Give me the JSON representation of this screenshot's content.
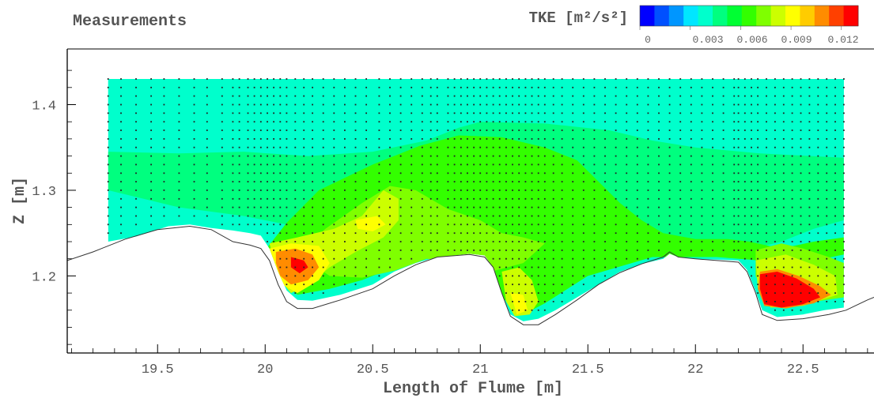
{
  "chart_data": {
    "type": "heatmap",
    "title": "Measurements",
    "legend": {
      "title": "TKE [m²/s²]",
      "tick_labels": [
        "0",
        "0.003",
        "0.006",
        "0.009",
        "0.012"
      ],
      "ticks": [
        0,
        0.003,
        0.006,
        0.009,
        0.012
      ],
      "range": [
        0,
        0.013
      ],
      "colors": [
        "#0000ff",
        "#0050ff",
        "#0096ff",
        "#00e6ff",
        "#00ffcc",
        "#00ff7f",
        "#00ff33",
        "#33ff00",
        "#7fff00",
        "#ccff00",
        "#ffff00",
        "#ffcc00",
        "#ff8c00",
        "#ff4000",
        "#ff0000"
      ]
    },
    "xlabel": "Length of Flume [m]",
    "ylabel": "Z [m]",
    "x_ticks": [
      "19.5",
      "20",
      "20.5",
      "21",
      "21.5",
      "22",
      "22.5"
    ],
    "y_ticks": [
      "1.2",
      "1.3",
      "1.4"
    ],
    "xlim": [
      19.08,
      22.83
    ],
    "ylim": [
      1.11,
      1.465
    ],
    "bed_profile": [
      [
        19.08,
        1.218
      ],
      [
        19.2,
        1.228
      ],
      [
        19.35,
        1.243
      ],
      [
        19.5,
        1.254
      ],
      [
        19.65,
        1.258
      ],
      [
        19.75,
        1.254
      ],
      [
        19.85,
        1.24
      ],
      [
        19.93,
        1.236
      ],
      [
        19.98,
        1.232
      ],
      [
        20.02,
        1.218
      ],
      [
        20.06,
        1.19
      ],
      [
        20.1,
        1.17
      ],
      [
        20.15,
        1.162
      ],
      [
        20.22,
        1.162
      ],
      [
        20.35,
        1.172
      ],
      [
        20.5,
        1.185
      ],
      [
        20.6,
        1.2
      ],
      [
        20.7,
        1.213
      ],
      [
        20.8,
        1.222
      ],
      [
        20.95,
        1.225
      ],
      [
        21.02,
        1.222
      ],
      [
        21.06,
        1.21
      ],
      [
        21.1,
        1.18
      ],
      [
        21.14,
        1.153
      ],
      [
        21.2,
        1.143
      ],
      [
        21.27,
        1.143
      ],
      [
        21.35,
        1.155
      ],
      [
        21.45,
        1.172
      ],
      [
        21.55,
        1.19
      ],
      [
        21.65,
        1.204
      ],
      [
        21.75,
        1.214
      ],
      [
        21.85,
        1.222
      ],
      [
        21.88,
        1.228
      ],
      [
        21.92,
        1.222
      ],
      [
        22.0,
        1.22
      ],
      [
        22.1,
        1.218
      ],
      [
        22.2,
        1.216
      ],
      [
        22.24,
        1.205
      ],
      [
        22.28,
        1.18
      ],
      [
        22.31,
        1.155
      ],
      [
        22.38,
        1.148
      ],
      [
        22.5,
        1.15
      ],
      [
        22.62,
        1.155
      ],
      [
        22.7,
        1.16
      ],
      [
        22.8,
        1.172
      ],
      [
        22.83,
        1.175
      ]
    ],
    "data_bottom": [
      [
        19.27,
        1.24
      ],
      [
        19.4,
        1.246
      ],
      [
        19.55,
        1.258
      ],
      [
        19.65,
        1.26
      ],
      [
        19.75,
        1.256
      ],
      [
        19.85,
        1.253
      ],
      [
        19.93,
        1.25
      ],
      [
        19.98,
        1.247
      ],
      [
        20.02,
        1.232
      ],
      [
        20.06,
        1.205
      ],
      [
        20.1,
        1.183
      ],
      [
        20.15,
        1.172
      ],
      [
        20.22,
        1.171
      ],
      [
        20.35,
        1.178
      ],
      [
        20.5,
        1.19
      ],
      [
        20.6,
        1.205
      ],
      [
        20.7,
        1.215
      ],
      [
        20.8,
        1.222
      ],
      [
        20.95,
        1.226
      ],
      [
        21.02,
        1.224
      ],
      [
        21.06,
        1.21
      ],
      [
        21.1,
        1.18
      ],
      [
        21.14,
        1.155
      ],
      [
        21.2,
        1.147
      ],
      [
        21.27,
        1.15
      ],
      [
        21.35,
        1.16
      ],
      [
        21.45,
        1.175
      ],
      [
        21.55,
        1.19
      ],
      [
        21.65,
        1.205
      ],
      [
        21.75,
        1.214
      ],
      [
        21.85,
        1.22
      ],
      [
        21.88,
        1.226
      ],
      [
        21.92,
        1.222
      ],
      [
        22.0,
        1.22
      ],
      [
        22.1,
        1.219
      ],
      [
        22.2,
        1.218
      ],
      [
        22.24,
        1.207
      ],
      [
        22.28,
        1.182
      ],
      [
        22.31,
        1.16
      ],
      [
        22.38,
        1.152
      ],
      [
        22.5,
        1.155
      ],
      [
        22.6,
        1.16
      ],
      [
        22.69,
        1.163
      ]
    ],
    "data_top": 1.43,
    "data_x_range": [
      19.27,
      22.69
    ],
    "bands": [
      {
        "value": 0.0035,
        "polygon": [
          [
            19.27,
            1.43
          ],
          [
            22.69,
            1.43
          ],
          [
            22.69,
            1.395
          ],
          [
            22.3,
            1.392
          ],
          [
            21.9,
            1.39
          ],
          [
            21.5,
            1.39
          ],
          [
            21.0,
            1.385
          ],
          [
            20.8,
            1.375
          ],
          [
            20.5,
            1.378
          ],
          [
            20.2,
            1.385
          ],
          [
            19.9,
            1.388
          ],
          [
            19.6,
            1.39
          ],
          [
            19.27,
            1.392
          ]
        ]
      },
      {
        "value": 0.0048,
        "polygon": [
          [
            19.27,
            1.345
          ],
          [
            19.6,
            1.343
          ],
          [
            19.9,
            1.345
          ],
          [
            20.2,
            1.34
          ],
          [
            20.5,
            1.345
          ],
          [
            20.75,
            1.358
          ],
          [
            20.9,
            1.373
          ],
          [
            21.0,
            1.38
          ],
          [
            21.3,
            1.378
          ],
          [
            21.6,
            1.37
          ],
          [
            21.8,
            1.358
          ],
          [
            22.0,
            1.35
          ],
          [
            22.3,
            1.343
          ],
          [
            22.69,
            1.338
          ],
          [
            22.69,
            1.265
          ],
          [
            22.55,
            1.255
          ],
          [
            22.4,
            1.24
          ],
          [
            22.2,
            1.228
          ],
          [
            21.9,
            1.232
          ],
          [
            21.6,
            1.225
          ],
          [
            21.3,
            1.222
          ],
          [
            21.0,
            1.232
          ],
          [
            20.75,
            1.245
          ],
          [
            20.5,
            1.25
          ],
          [
            20.2,
            1.255
          ],
          [
            19.9,
            1.27
          ],
          [
            19.6,
            1.28
          ],
          [
            19.27,
            1.3
          ]
        ]
      },
      {
        "value": 0.0062,
        "polygon": [
          [
            20.25,
            1.3
          ],
          [
            20.5,
            1.33
          ],
          [
            20.72,
            1.352
          ],
          [
            20.9,
            1.364
          ],
          [
            21.1,
            1.362
          ],
          [
            21.3,
            1.35
          ],
          [
            21.45,
            1.335
          ],
          [
            21.55,
            1.31
          ],
          [
            21.65,
            1.285
          ],
          [
            21.75,
            1.265
          ],
          [
            21.85,
            1.25
          ],
          [
            22.0,
            1.243
          ],
          [
            22.15,
            1.243
          ],
          [
            22.25,
            1.24
          ],
          [
            22.4,
            1.232
          ],
          [
            22.55,
            1.24
          ],
          [
            22.69,
            1.245
          ],
          [
            22.69,
            1.225
          ],
          [
            22.5,
            1.215
          ],
          [
            22.3,
            1.218
          ],
          [
            22.1,
            1.222
          ],
          [
            21.8,
            1.222
          ],
          [
            21.5,
            1.2
          ],
          [
            21.3,
            1.168
          ],
          [
            21.2,
            1.155
          ],
          [
            21.1,
            1.175
          ],
          [
            21.0,
            1.215
          ],
          [
            20.8,
            1.225
          ],
          [
            20.6,
            1.21
          ],
          [
            20.45,
            1.195
          ],
          [
            20.3,
            1.185
          ],
          [
            20.15,
            1.178
          ],
          [
            20.05,
            1.2
          ],
          [
            20.0,
            1.23
          ],
          [
            20.1,
            1.262
          ]
        ]
      },
      {
        "value": 0.0074,
        "polygon": [
          [
            20.15,
            1.225
          ],
          [
            20.28,
            1.255
          ],
          [
            20.45,
            1.285
          ],
          [
            20.58,
            1.305
          ],
          [
            20.7,
            1.3
          ],
          [
            20.85,
            1.278
          ],
          [
            21.0,
            1.265
          ],
          [
            21.1,
            1.25
          ],
          [
            21.2,
            1.245
          ],
          [
            21.3,
            1.238
          ],
          [
            21.2,
            1.215
          ],
          [
            21.05,
            1.205
          ],
          [
            20.9,
            1.218
          ],
          [
            20.75,
            1.22
          ],
          [
            20.6,
            1.206
          ],
          [
            20.45,
            1.198
          ],
          [
            20.3,
            1.2
          ]
        ]
      },
      {
        "value": 0.0074,
        "polygon": [
          [
            22.28,
            1.23
          ],
          [
            22.4,
            1.238
          ],
          [
            22.5,
            1.232
          ],
          [
            22.62,
            1.222
          ],
          [
            22.69,
            1.215
          ],
          [
            22.69,
            1.175
          ],
          [
            22.5,
            1.168
          ],
          [
            22.35,
            1.17
          ],
          [
            22.28,
            1.2
          ]
        ]
      },
      {
        "value": 0.0083,
        "polygon": [
          [
            20.02,
            1.238
          ],
          [
            20.15,
            1.245
          ],
          [
            20.32,
            1.255
          ],
          [
            20.45,
            1.27
          ],
          [
            20.55,
            1.3
          ],
          [
            20.62,
            1.29
          ],
          [
            20.62,
            1.265
          ],
          [
            20.55,
            1.245
          ],
          [
            20.42,
            1.228
          ],
          [
            20.3,
            1.21
          ],
          [
            20.2,
            1.19
          ],
          [
            20.12,
            1.18
          ],
          [
            20.06,
            1.198
          ]
        ]
      },
      {
        "value": 0.0083,
        "polygon": [
          [
            21.1,
            1.205
          ],
          [
            21.18,
            1.21
          ],
          [
            21.24,
            1.195
          ],
          [
            21.27,
            1.17
          ],
          [
            21.23,
            1.155
          ],
          [
            21.16,
            1.153
          ],
          [
            21.12,
            1.17
          ]
        ]
      },
      {
        "value": 0.0083,
        "polygon": [
          [
            22.28,
            1.218
          ],
          [
            22.42,
            1.225
          ],
          [
            22.55,
            1.213
          ],
          [
            22.65,
            1.2
          ],
          [
            22.66,
            1.178
          ],
          [
            22.5,
            1.165
          ],
          [
            22.35,
            1.163
          ],
          [
            22.29,
            1.185
          ]
        ]
      },
      {
        "value": 0.0095,
        "polygon": [
          [
            20.02,
            1.232
          ],
          [
            20.12,
            1.238
          ],
          [
            20.25,
            1.235
          ],
          [
            20.3,
            1.215
          ],
          [
            20.25,
            1.195
          ],
          [
            20.15,
            1.18
          ],
          [
            20.08,
            1.19
          ],
          [
            20.04,
            1.21
          ]
        ]
      },
      {
        "value": 0.0095,
        "polygon": [
          [
            20.42,
            1.265
          ],
          [
            20.52,
            1.27
          ],
          [
            20.56,
            1.26
          ],
          [
            20.5,
            1.252
          ],
          [
            20.43,
            1.255
          ]
        ]
      },
      {
        "value": 0.0095,
        "polygon": [
          [
            21.14,
            1.18
          ],
          [
            21.2,
            1.178
          ],
          [
            21.22,
            1.16
          ],
          [
            21.17,
            1.155
          ]
        ]
      },
      {
        "value": 0.0112,
        "polygon": [
          [
            20.05,
            1.228
          ],
          [
            20.14,
            1.232
          ],
          [
            20.22,
            1.225
          ],
          [
            20.25,
            1.21
          ],
          [
            20.2,
            1.195
          ],
          [
            20.12,
            1.19
          ],
          [
            20.07,
            1.2
          ],
          [
            20.05,
            1.215
          ]
        ]
      },
      {
        "value": 0.0112,
        "polygon": [
          [
            22.3,
            1.205
          ],
          [
            22.38,
            1.208
          ],
          [
            22.48,
            1.2
          ],
          [
            22.58,
            1.188
          ],
          [
            22.63,
            1.178
          ],
          [
            22.55,
            1.168
          ],
          [
            22.42,
            1.162
          ],
          [
            22.32,
            1.165
          ],
          [
            22.29,
            1.185
          ]
        ]
      },
      {
        "value": 0.0125,
        "polygon": [
          [
            20.12,
            1.222
          ],
          [
            20.18,
            1.218
          ],
          [
            20.2,
            1.21
          ],
          [
            20.16,
            1.203
          ],
          [
            20.12,
            1.21
          ]
        ]
      },
      {
        "value": 0.0125,
        "polygon": [
          [
            22.3,
            1.202
          ],
          [
            22.38,
            1.205
          ],
          [
            22.47,
            1.197
          ],
          [
            22.55,
            1.185
          ],
          [
            22.58,
            1.175
          ],
          [
            22.5,
            1.167
          ],
          [
            22.4,
            1.163
          ],
          [
            22.32,
            1.167
          ],
          [
            22.3,
            1.185
          ]
        ]
      }
    ],
    "measurement_columns": [
      19.27,
      19.33,
      19.4,
      19.47,
      19.53,
      19.6,
      19.67,
      19.73,
      19.8,
      19.85,
      19.88,
      19.92,
      19.95,
      19.98,
      20.01,
      20.04,
      20.07,
      20.1,
      20.14,
      20.18,
      20.22,
      20.27,
      20.32,
      20.37,
      20.42,
      20.47,
      20.53,
      20.58,
      20.63,
      20.68,
      20.73,
      20.77,
      20.8,
      20.85,
      20.88,
      20.91,
      20.94,
      20.97,
      21.0,
      21.03,
      21.06,
      21.09,
      21.12,
      21.15,
      21.18,
      21.21,
      21.24,
      21.27,
      21.3,
      21.34,
      21.38,
      21.43,
      21.48,
      21.53,
      21.58,
      21.63,
      21.68,
      21.73,
      21.78,
      21.83,
      21.88,
      21.93,
      21.98,
      22.03,
      22.08,
      22.13,
      22.18,
      22.2,
      22.23,
      22.26,
      22.29,
      22.33,
      22.37,
      22.41,
      22.45,
      22.49,
      22.53,
      22.57,
      22.61,
      22.65,
      22.69
    ],
    "measurement_dz": 0.01
  }
}
